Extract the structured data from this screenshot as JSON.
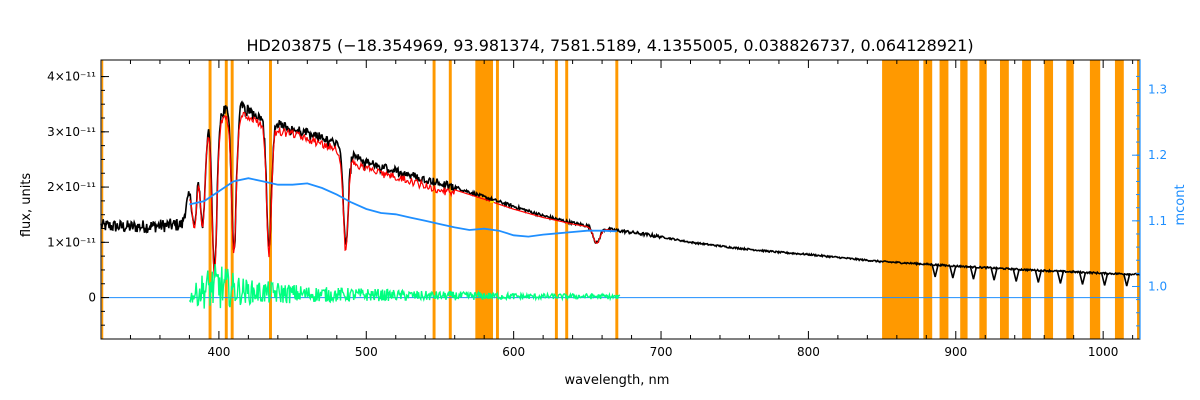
{
  "chart_data": {
    "type": "line",
    "title": "HD203875    (−18.354969, 93.981374, 7581.5189, 4.1355005, 0.038826737, 0.064128921)",
    "xlabel": "wavelength, nm",
    "ylabel": "flux, units",
    "y2label": "mcont",
    "xlim": [
      320,
      1025
    ],
    "ylim": [
      -7.5e-12,
      4.3e-11
    ],
    "y2lim": [
      0.92,
      1.345
    ],
    "x_ticks": [
      {
        "value": 400,
        "label": "400"
      },
      {
        "value": 500,
        "label": "500"
      },
      {
        "value": 600,
        "label": "600"
      },
      {
        "value": 700,
        "label": "700"
      },
      {
        "value": 800,
        "label": "800"
      },
      {
        "value": 900,
        "label": "900"
      },
      {
        "value": 1000,
        "label": "1000"
      }
    ],
    "y_ticks": [
      {
        "value": 0,
        "label": "0"
      },
      {
        "value": 1e-11,
        "label": "1×10⁻¹¹"
      },
      {
        "value": 2e-11,
        "label": "2×10⁻¹¹"
      },
      {
        "value": 3e-11,
        "label": "3×10⁻¹¹"
      },
      {
        "value": 4e-11,
        "label": "4×10⁻¹¹"
      }
    ],
    "y2_ticks": [
      {
        "value": 1.0,
        "label": "1.0"
      },
      {
        "value": 1.1,
        "label": "1.1"
      },
      {
        "value": 1.2,
        "label": "1.2"
      },
      {
        "value": 1.3,
        "label": "1.3"
      }
    ],
    "grid": false,
    "colors": {
      "observed": "#000000",
      "model": "#ff0000",
      "residual": "#00ff80",
      "continuum": "#1f8fff",
      "mask": "#ff9900",
      "highlight": "#ffdd00"
    },
    "masked_regions": [
      [
        320.5,
        321.5
      ],
      [
        393,
        395
      ],
      [
        404,
        406
      ],
      [
        408,
        410
      ],
      [
        434,
        436
      ],
      [
        545,
        547
      ],
      [
        556,
        558
      ],
      [
        574,
        586
      ],
      [
        588,
        590
      ],
      [
        628,
        630
      ],
      [
        635,
        637
      ],
      [
        669,
        671
      ],
      [
        850,
        875
      ],
      [
        878,
        884
      ],
      [
        889,
        895
      ],
      [
        903,
        908
      ],
      [
        916,
        921
      ],
      [
        930,
        936
      ],
      [
        945,
        951
      ],
      [
        960,
        966
      ],
      [
        975,
        980
      ],
      [
        991,
        998
      ],
      [
        1008,
        1014
      ],
      [
        1023,
        1025
      ]
    ],
    "absorption_lines": [
      {
        "x": 383.5,
        "depth": 0.45
      },
      {
        "x": 388.9,
        "depth": 0.55
      },
      {
        "x": 397.0,
        "depth": 0.85
      },
      {
        "x": 410.2,
        "depth": 0.75
      },
      {
        "x": 434.0,
        "depth": 0.72
      },
      {
        "x": 486.1,
        "depth": 0.65
      },
      {
        "x": 656.3,
        "depth": 0.22
      }
    ],
    "series": [
      {
        "name": "",
        "role": "observed",
        "axis": "left",
        "x": [
          320,
          340,
          360,
          375,
          380,
          386,
          392,
          398,
          404,
          410,
          418,
          426,
          434,
          446,
          460,
          476,
          490,
          500,
          520,
          540,
          560,
          580,
          600,
          620,
          640,
          660,
          680,
          700,
          720,
          750,
          780,
          800,
          830,
          850,
          870,
          900,
          950,
          1000,
          1025
        ],
        "y": [
          1.3e-11,
          1.28e-11,
          1.3e-11,
          1.32e-11,
          1.9e-11,
          2.65e-11,
          3.1e-11,
          3.3e-11,
          3.38e-11,
          3.5e-11,
          3.42e-11,
          3.3e-11,
          3.2e-11,
          3.1e-11,
          3e-11,
          2.85e-11,
          2.6e-11,
          2.45e-11,
          2.3e-11,
          2.15e-11,
          2e-11,
          1.82e-11,
          1.65e-11,
          1.48e-11,
          1.35e-11,
          1.25e-11,
          1.18e-11,
          1.1e-11,
          1e-11,
          9e-12,
          8.2e-12,
          7.8e-12,
          7e-12,
          6.5e-12,
          6.2e-12,
          5.7e-12,
          5e-12,
          4.4e-12,
          4.2e-12
        ]
      },
      {
        "name": "",
        "role": "model",
        "axis": "left",
        "x": [
          380,
          386,
          392,
          398,
          404,
          410,
          418,
          426,
          434,
          446,
          460,
          476,
          490,
          500,
          520,
          540,
          560,
          580,
          600,
          620,
          640,
          660,
          670
        ],
        "y": [
          1.85e-11,
          2.6e-11,
          3.05e-11,
          3.22e-11,
          3.3e-11,
          3.42e-11,
          3.35e-11,
          3.24e-11,
          3.13e-11,
          3.05e-11,
          2.95e-11,
          2.8e-11,
          2.55e-11,
          2.4e-11,
          2.25e-11,
          2.1e-11,
          1.95e-11,
          1.78e-11,
          1.6e-11,
          1.45e-11,
          1.33e-11,
          1.24e-11,
          1.2e-11
        ]
      },
      {
        "name": "",
        "role": "residual",
        "axis": "left",
        "x": [
          380,
          390,
          400,
          410,
          420,
          440,
          460,
          480,
          500,
          520,
          540,
          560,
          580,
          600,
          620,
          640,
          660,
          672
        ],
        "y": [
          0,
          1.5e-12,
          2e-12,
          1.5e-12,
          1e-12,
          8e-13,
          6e-13,
          5e-13,
          5e-13,
          4e-13,
          3e-13,
          3e-13,
          3e-13,
          2e-13,
          2e-13,
          2e-13,
          2e-13,
          1e-13
        ],
        "amplitude": [
          8e-13,
          3.5e-12,
          4.5e-12,
          3e-12,
          2.2e-12,
          2e-12,
          1.5e-12,
          1.3e-12,
          1.2e-12,
          1e-12,
          9e-13,
          8e-13,
          7e-13,
          6e-13,
          5e-13,
          5e-13,
          5e-13,
          4e-13
        ]
      },
      {
        "name": "",
        "role": "continuum",
        "axis": "right",
        "x": [
          380,
          390,
          400,
          410,
          420,
          430,
          440,
          450,
          460,
          470,
          480,
          490,
          500,
          510,
          520,
          530,
          540,
          550,
          560,
          570,
          580,
          590,
          600,
          610,
          620,
          630,
          640,
          650,
          660,
          670
        ],
        "y": [
          1.125,
          1.13,
          1.145,
          1.16,
          1.165,
          1.16,
          1.155,
          1.155,
          1.157,
          1.15,
          1.14,
          1.128,
          1.118,
          1.112,
          1.11,
          1.105,
          1.1,
          1.095,
          1.09,
          1.086,
          1.088,
          1.085,
          1.078,
          1.076,
          1.079,
          1.081,
          1.083,
          1.085,
          1.085,
          1.084
        ]
      },
      {
        "name": "",
        "role": "zero-baseline",
        "axis": "left",
        "x": [
          320,
          1025
        ],
        "y": [
          0,
          0
        ]
      }
    ]
  }
}
